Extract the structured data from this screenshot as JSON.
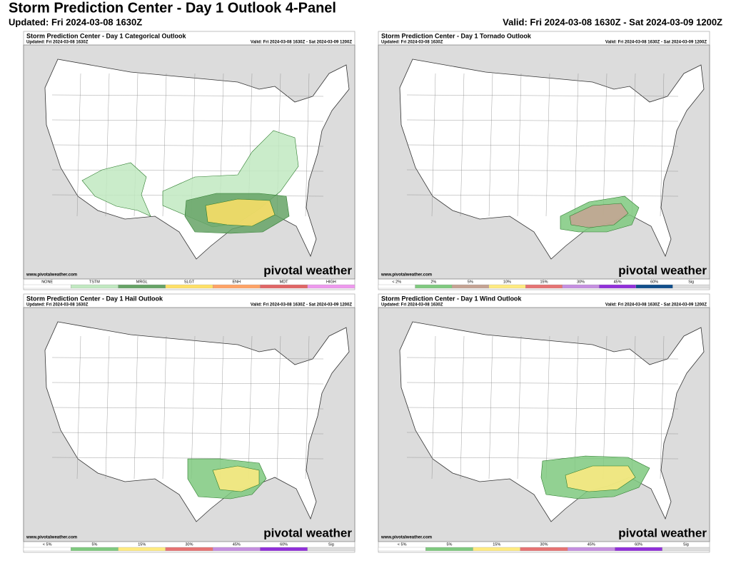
{
  "header": {
    "title": "Storm Prediction Center - Day 1 Outlook 4-Panel",
    "updated": "Updated: Fri 2024-03-08 1630Z",
    "valid": "Valid: Fri 2024-03-08 1630Z - Sat 2024-03-09 1200Z"
  },
  "panels": [
    {
      "title": "Storm Prediction Center - Day 1 Categorical Outlook",
      "updated": "Updated: Fri 2024-03-08 1630Z",
      "valid": "Valid: Fri 2024-03-08 1630Z - Sat 2024-03-09 1200Z",
      "site": "www.pivotalweather.com",
      "brand": "pivotal weather",
      "legend": [
        {
          "label": "NONE",
          "color": "#ffffff"
        },
        {
          "label": "TSTM",
          "color": "#c1e9c1"
        },
        {
          "label": "MRGL",
          "color": "#66a366"
        },
        {
          "label": "SLGT",
          "color": "#ffe066"
        },
        {
          "label": "ENH",
          "color": "#ffa366"
        },
        {
          "label": "MDT",
          "color": "#e06666"
        },
        {
          "label": "HIGH",
          "color": "#ee99ee"
        }
      ]
    },
    {
      "title": "Storm Prediction Center - Day 1 Tornado Outlook",
      "updated": "Updated: Fri 2024-03-08 1630Z",
      "valid": "Valid: Fri 2024-03-08 1630Z - Sat 2024-03-09 1200Z",
      "site": "www.pivotalweather.com",
      "brand": "pivotal weather",
      "legend": [
        {
          "label": "< 2%",
          "color": "#ffffff"
        },
        {
          "label": "2%",
          "color": "#7fc97f"
        },
        {
          "label": "5%",
          "color": "#c5a393"
        },
        {
          "label": "10%",
          "color": "#ffeb80"
        },
        {
          "label": "15%",
          "color": "#e67373"
        },
        {
          "label": "30%",
          "color": "#c58fe0"
        },
        {
          "label": "45%",
          "color": "#9130d9"
        },
        {
          "label": "60%",
          "color": "#104e8b"
        },
        {
          "label": "Sig",
          "color": "#dddddd"
        }
      ]
    },
    {
      "title": "Storm Prediction Center - Day 1 Hail Outlook",
      "updated": "Updated: Fri 2024-03-08 1630Z",
      "valid": "Valid: Fri 2024-03-08 1630Z - Sat 2024-03-09 1200Z",
      "site": "www.pivotalweather.com",
      "brand": "pivotal weather",
      "legend": [
        {
          "label": "< 5%",
          "color": "#ffffff"
        },
        {
          "label": "5%",
          "color": "#7fc97f"
        },
        {
          "label": "15%",
          "color": "#ffeb80"
        },
        {
          "label": "30%",
          "color": "#e67373"
        },
        {
          "label": "45%",
          "color": "#c58fe0"
        },
        {
          "label": "60%",
          "color": "#9130d9"
        },
        {
          "label": "Sig",
          "color": "#dddddd"
        }
      ]
    },
    {
      "title": "Storm Prediction Center - Day 1 Wind Outlook",
      "updated": "Updated: Fri 2024-03-08 1630Z",
      "valid": "Valid: Fri 2024-03-08 1630Z - Sat 2024-03-09 1200Z",
      "site": "www.pivotalweather.com",
      "brand": "pivotal weather",
      "legend": [
        {
          "label": "< 5%",
          "color": "#ffffff"
        },
        {
          "label": "5%",
          "color": "#7fc97f"
        },
        {
          "label": "15%",
          "color": "#ffeb80"
        },
        {
          "label": "30%",
          "color": "#e67373"
        },
        {
          "label": "45%",
          "color": "#c58fe0"
        },
        {
          "label": "60%",
          "color": "#9130d9"
        },
        {
          "label": "Sig",
          "color": "#dddddd"
        }
      ]
    }
  ]
}
